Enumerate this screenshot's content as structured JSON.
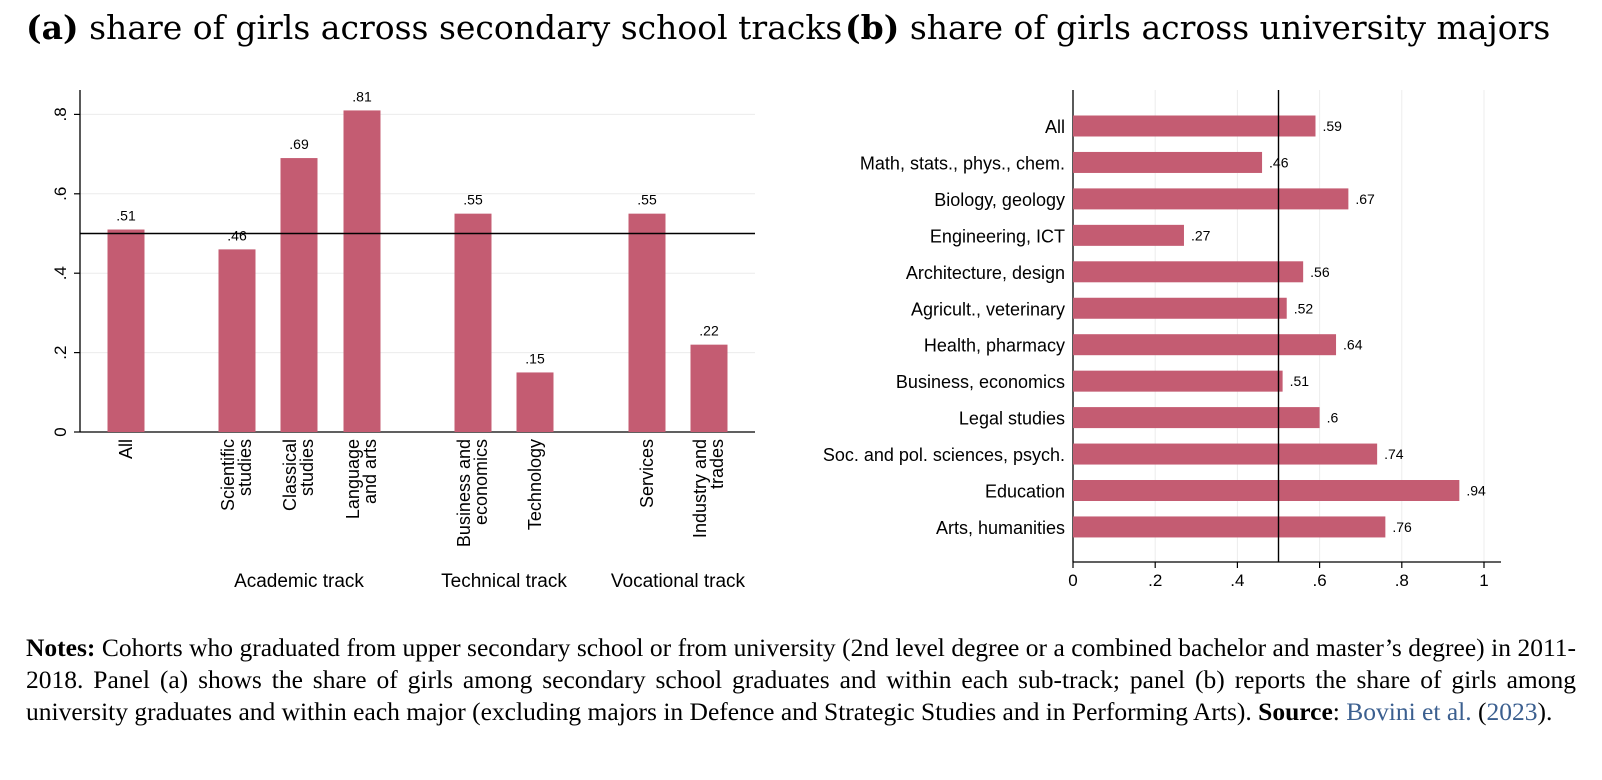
{
  "panels": {
    "a": {
      "tag": "(a)",
      "title": "share of girls across secondary school tracks"
    },
    "b": {
      "tag": "(b)",
      "title": "share of girls across university majors"
    }
  },
  "chart_data": [
    {
      "type": "bar",
      "orientation": "vertical",
      "title": "(a) share of girls across secondary school tracks",
      "categories": [
        "All",
        "Scientific studies",
        "Classical studies",
        "Language and arts",
        "Business and economics",
        "Technology",
        "Services",
        "Industry and trades"
      ],
      "category_lines": [
        [
          "All"
        ],
        [
          "Scientific",
          "studies"
        ],
        [
          "Classical",
          "studies"
        ],
        [
          "Language",
          "and arts"
        ],
        [
          "Business and",
          "economics"
        ],
        [
          "Technology"
        ],
        [
          "Services"
        ],
        [
          "Industry and",
          "trades"
        ]
      ],
      "values": [
        0.51,
        0.46,
        0.69,
        0.81,
        0.55,
        0.15,
        0.55,
        0.22
      ],
      "value_labels": [
        ".51",
        ".46",
        ".69",
        ".81",
        ".55",
        ".15",
        ".55",
        ".22"
      ],
      "groups": [
        {
          "name": "Academic track",
          "members": [
            "Scientific studies",
            "Classical studies",
            "Language and arts"
          ]
        },
        {
          "name": "Technical track",
          "members": [
            "Business and economics",
            "Technology"
          ]
        },
        {
          "name": "Vocational track",
          "members": [
            "Services",
            "Industry and trades"
          ]
        }
      ],
      "yticks": [
        0,
        0.2,
        0.4,
        0.6,
        0.8
      ],
      "ytick_labels": [
        "0",
        ".2",
        ".4",
        ".6",
        ".8"
      ],
      "ylim": [
        0,
        0.86
      ],
      "reference_line": 0.5,
      "grid": true,
      "bar_color": "#c45c72"
    },
    {
      "type": "bar",
      "orientation": "horizontal",
      "title": "(b) share of girls across university majors",
      "categories": [
        "All",
        "Math, stats., phys., chem.",
        "Biology, geology",
        "Engineering, ICT",
        "Architecture, design",
        "Agricult., veterinary",
        "Health, pharmacy",
        "Business, economics",
        "Legal studies",
        "Soc. and pol. sciences, psych.",
        "Education",
        "Arts, humanities"
      ],
      "values": [
        0.59,
        0.46,
        0.67,
        0.27,
        0.56,
        0.52,
        0.64,
        0.51,
        0.6,
        0.74,
        0.94,
        0.76
      ],
      "value_labels": [
        ".59",
        ".46",
        ".67",
        ".27",
        ".56",
        ".52",
        ".64",
        ".51",
        ".6",
        ".74",
        ".94",
        ".76"
      ],
      "xticks": [
        0,
        0.2,
        0.4,
        0.6,
        0.8,
        1
      ],
      "xtick_labels": [
        "0",
        ".2",
        ".4",
        ".6",
        ".8",
        "1"
      ],
      "xlim": [
        0,
        1.04
      ],
      "reference_line": 0.5,
      "grid": true,
      "bar_color": "#c45c72"
    }
  ],
  "notes": {
    "label": "Notes:",
    "text": " Cohorts who graduated from upper secondary school or from university (2nd level degree or a combined bachelor and master’s degree) in 2011-2018. Panel (a) shows the share of girls among secondary school graduates and within each sub-track; panel (b) reports the share of girls among university graduates and within each major (excluding majors in Defence and Strategic Studies and in Performing Arts). ",
    "source_label": "Source",
    "source_sep": ": ",
    "cite_authors": "Bovini et al.",
    "cite_open": " (",
    "cite_year": "2023",
    "cite_close": ")."
  }
}
